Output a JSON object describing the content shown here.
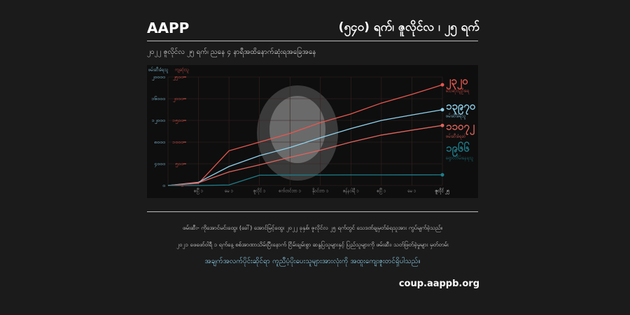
{
  "header": {
    "title": "AAPP",
    "date": "(၅၄၀) ရက်၊ ဇူလိုင်လ ၊ ၂၅ ရက်",
    "subtitle": "၂၀၂၂ ဇူလိုင်လ ၂၅ ရက်၊ ညနေ ၄ နာရီအထိနောက်ဆုံးရအခြေအနေ"
  },
  "chart_data": {
    "type": "line",
    "ylabel": "ဖမ်းဆီးခံရသူ",
    "y2label": "ကျဆုံးသူ",
    "categories": [
      null,
      "ဧပြီ ၁",
      "မေ ၁",
      "ဇူလိုင် ၁",
      "စက်တင်ဘာ ၁",
      "နိုဝင်ဘာ ၁",
      "ဇန်နဝါရီ ၁",
      "ဧပြီ ၁",
      "မေ ၁",
      "ဇူလိုင် ၂၅"
    ],
    "ylim": [
      0,
      20000
    ],
    "yticks": [
      {
        "value": 0,
        "label": "၀"
      },
      {
        "value": 4000,
        "label": "၄၀၀၀"
      },
      {
        "value": 8000,
        "label": "၈၀၀၀"
      },
      {
        "value": 12000,
        "label": "၁၂၀၀၀"
      },
      {
        "value": 16000,
        "label": "၁၆၀၀၀"
      },
      {
        "value": 20000,
        "label": "၂၀၀၀၀"
      }
    ],
    "y2lim": [
      0,
      2500
    ],
    "y2ticks": [
      {
        "value": 0,
        "label": "၀"
      },
      {
        "value": 500,
        "label": "၅၀၀"
      },
      {
        "value": 1000,
        "label": "၁၀၀၀"
      },
      {
        "value": 1500,
        "label": "၁၅၀၀"
      },
      {
        "value": 2000,
        "label": "၂၀၀၀"
      },
      {
        "value": 2500,
        "label": "၂၅၀၀"
      }
    ],
    "grid": true,
    "series": [
      {
        "name": "သေဆုံးသူဦးရေ",
        "color": "#e8574f",
        "axis": "y2",
        "values": [
          0,
          50,
          800,
          1000,
          1200,
          1450,
          1650,
          1900,
          2100,
          2320
        ],
        "value_labels": [
          null,
          null,
          null,
          null,
          null,
          null,
          null,
          null,
          null,
          "၂၃၂၀"
        ]
      },
      {
        "name": "ဖမ်းဆီးခံရသူ",
        "color": "#8fd3ee",
        "values": [
          0,
          600,
          3500,
          5500,
          7000,
          8800,
          10500,
          12000,
          13000,
          13970
        ],
        "value_labels": [
          null,
          null,
          null,
          null,
          null,
          null,
          null,
          null,
          null,
          "၁၃၉၇၀"
        ]
      },
      {
        "name": "ဖမ်းဆီးခံရဆဲ",
        "color": "#e0645c",
        "values": [
          0,
          500,
          2500,
          3800,
          5200,
          6500,
          8000,
          9300,
          10200,
          11072
        ],
        "value_labels": [
          null,
          null,
          null,
          null,
          null,
          null,
          null,
          null,
          null,
          "၁၁၀၇၂"
        ]
      },
      {
        "name": "ရှောင်တိမ်းနေရသူ",
        "color": "#1f7e8c",
        "values": [
          0,
          0,
          100,
          1900,
          1930,
          1940,
          1950,
          1955,
          1960,
          1966
        ],
        "value_labels": [
          null,
          null,
          null,
          null,
          null,
          null,
          null,
          null,
          null,
          "၁၉၆၆"
        ]
      }
    ]
  },
  "footer": {
    "lines": [
      "ဖမ်းဆီး- ကိုအောင်မင်းထွေး (ခေါ်) အောင်မြင့်ထွေး ၂၀၂၂ ခုနှစ်၊ ဇူလိုင်လ ၂၅ ရက်တွင် သေဒဏ်ချမှတ်ခံရသူအား ကွပ်မျက်ခဲ့သည်။",
      "၂၀၂၁ ဖေဖော်ဝါရီ ၁ ရက်နေ့ စစ်အာဏာသိမ်းပြီးနောက် ငြိမ်းချမ်းစွာ ဆန္ဒပြသူများနှင့် ပြည်သူများကို ဖမ်းဆီး၊ သတ်ဖြတ်ခဲ့မှုများ မှတ်တမ်း",
      "အချက်အလက်ပိုင်းဆိုင်ရာ ကူညီပံ့ပိုးပေးသူများအားလုံးကို အထူးကျေးဇူးတင်ရှိပါသည်။"
    ],
    "url": "coup.aappb.org"
  }
}
